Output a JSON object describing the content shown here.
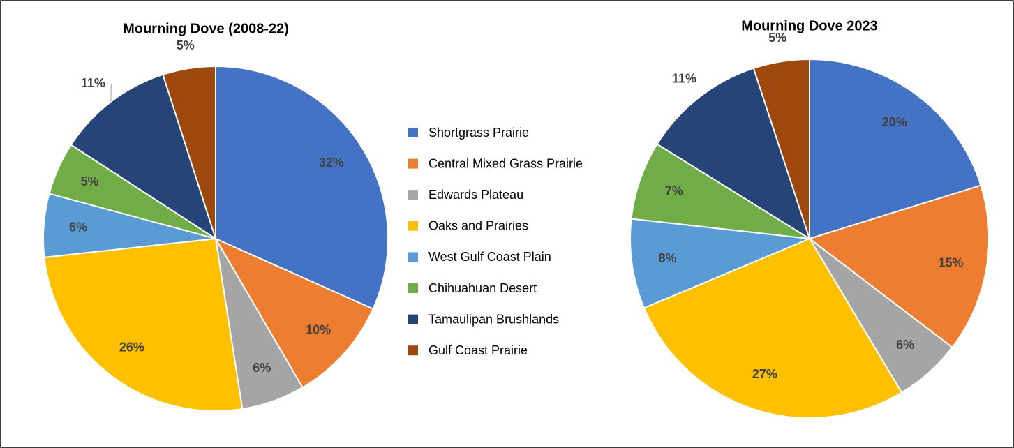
{
  "chart_data": [
    {
      "type": "pie",
      "title": "Mourning Dove (2008-22)",
      "categories": [
        "Shortgrass Prairie",
        "Central Mixed Grass Prairie",
        "Edwards Plateau",
        "Oaks and Prairies",
        "West Gulf Coast Plain",
        "Chihuahuan Desert",
        "Tamaulipan Brushlands",
        "Gulf Coast Prairie"
      ],
      "colors": [
        "#4472c4",
        "#ed7d31",
        "#a5a5a5",
        "#ffc000",
        "#5b9bd5",
        "#70ad47",
        "#264478",
        "#9e480e"
      ],
      "values": [
        32,
        10,
        6,
        26,
        6,
        5,
        11,
        5
      ],
      "value_labels": [
        "32%",
        "10%",
        "6%",
        "26%",
        "6%",
        "5%",
        "11%",
        "5%"
      ]
    },
    {
      "type": "pie",
      "title": "Mourning Dove 2023",
      "values": [
        20,
        15,
        6,
        27,
        8,
        7,
        11,
        5
      ],
      "value_labels": [
        "20%",
        "15%",
        "6%",
        "27%",
        "8%",
        "7%",
        "11%",
        "5%"
      ]
    }
  ]
}
